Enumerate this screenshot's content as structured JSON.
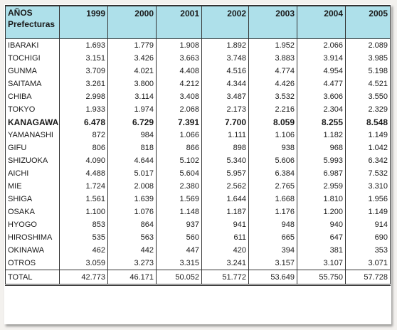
{
  "header": {
    "corner_line1": "AÑOS",
    "corner_line2": "Prefecturas",
    "years": [
      "1999",
      "2000",
      "2001",
      "2002",
      "2003",
      "2004",
      "2005"
    ]
  },
  "rows": [
    {
      "name": "IBARAKI",
      "values": [
        "1.693",
        "1.779",
        "1.908",
        "1.892",
        "1.952",
        "2.066",
        "2.089"
      ]
    },
    {
      "name": "TOCHIGI",
      "values": [
        "3.151",
        "3.426",
        "3.663",
        "3.748",
        "3.883",
        "3.914",
        "3.985"
      ]
    },
    {
      "name": "GUNMA",
      "values": [
        "3.709",
        "4.021",
        "4.408",
        "4.516",
        "4.774",
        "4.954",
        "5.198"
      ]
    },
    {
      "name": "SAITAMA",
      "values": [
        "3.261",
        "3.800",
        "4.212",
        "4.344",
        "4.426",
        "4.477",
        "4.521"
      ]
    },
    {
      "name": "CHIBA",
      "values": [
        "2.998",
        "3.114",
        "3.408",
        "3.487",
        "3.532",
        "3.606",
        "3.550"
      ]
    },
    {
      "name": "TOKYO",
      "values": [
        "1.933",
        "1.974",
        "2.068",
        "2.173",
        "2.216",
        "2.304",
        "2.329"
      ]
    },
    {
      "name": "KANAGAWA",
      "values": [
        "6.478",
        "6.729",
        "7.391",
        "7.700",
        "8.059",
        "8.255",
        "8.548"
      ],
      "bold": true
    },
    {
      "name": "YAMANASHI",
      "values": [
        "872",
        "984",
        "1.066",
        "1.111",
        "1.106",
        "1.182",
        "1.149"
      ]
    },
    {
      "name": "GIFU",
      "values": [
        "806",
        "818",
        "866",
        "898",
        "938",
        "968",
        "1.042"
      ]
    },
    {
      "name": "SHIZUOKA",
      "values": [
        "4.090",
        "4.644",
        "5.102",
        "5.340",
        "5.606",
        "5.993",
        "6.342"
      ]
    },
    {
      "name": "AICHI",
      "values": [
        "4.488",
        "5.017",
        "5.604",
        "5.957",
        "6.384",
        "6.987",
        "7.532"
      ]
    },
    {
      "name": "MIE",
      "values": [
        "1.724",
        "2.008",
        "2.380",
        "2.562",
        "2.765",
        "2.959",
        "3.310"
      ]
    },
    {
      "name": "SHIGA",
      "values": [
        "1.561",
        "1.639",
        "1.569",
        "1.644",
        "1.668",
        "1.810",
        "1.956"
      ]
    },
    {
      "name": "OSAKA",
      "values": [
        "1.100",
        "1.076",
        "1.148",
        "1.187",
        "1.176",
        "1.200",
        "1.149"
      ]
    },
    {
      "name": "HYOGO",
      "values": [
        "853",
        "864",
        "937",
        "941",
        "948",
        "940",
        "914"
      ]
    },
    {
      "name": "HIROSHIMA",
      "values": [
        "535",
        "563",
        "560",
        "611",
        "665",
        "647",
        "690"
      ]
    },
    {
      "name": "OKINAWA",
      "values": [
        "462",
        "442",
        "447",
        "420",
        "394",
        "381",
        "353"
      ]
    },
    {
      "name": "OTROS",
      "values": [
        "3.059",
        "3.273",
        "3.315",
        "3.241",
        "3.157",
        "3.107",
        "3.071"
      ]
    }
  ],
  "total": {
    "name": "TOTAL",
    "values": [
      "42.773",
      "46.171",
      "50.052",
      "51.772",
      "53.649",
      "55.750",
      "57.728"
    ]
  },
  "colors": {
    "header_bg": "#aee0ea",
    "border": "#333333",
    "text": "#1a1a1a"
  }
}
